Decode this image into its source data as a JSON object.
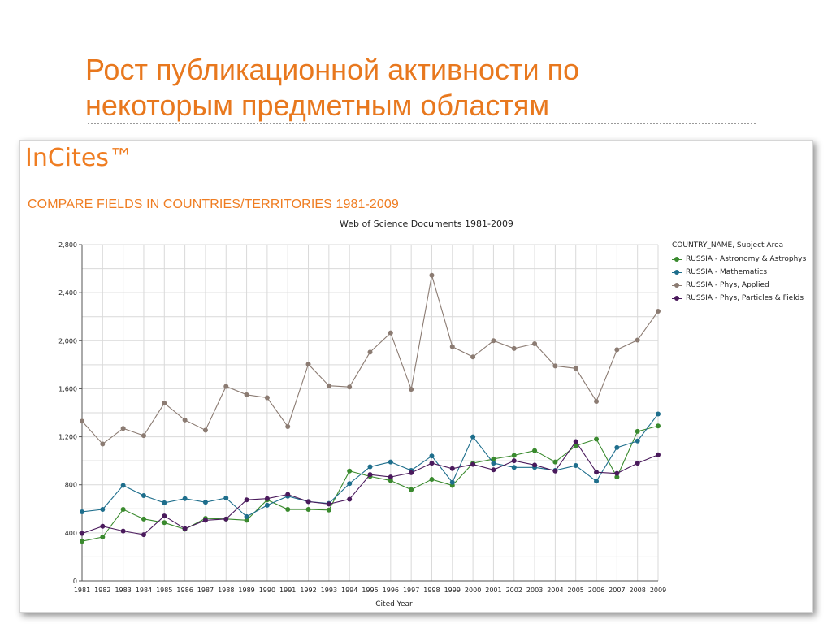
{
  "slide": {
    "title_line1": "Рост публикационной активности по",
    "title_line2": "некоторым предметным областям"
  },
  "panel": {
    "brand": "InCites™",
    "subtitle": "COMPARE FIELDS IN COUNTRIES/TERRITORIES 1981-2009"
  },
  "chart_data": {
    "type": "line",
    "title": "Web of Science Documents 1981-2009",
    "xlabel": "Cited Year",
    "ylabel": "",
    "ylim": [
      0,
      2800
    ],
    "yticks": [
      0,
      400,
      800,
      1200,
      1600,
      2000,
      2400,
      2800
    ],
    "ytick_labels": [
      "0",
      "400",
      "800",
      "1,200",
      "1,600",
      "2,000",
      "2,400",
      "2,800"
    ],
    "grid": true,
    "legend_title": "COUNTRY_NAME, Subject Area",
    "legend_position": "right",
    "categories": [
      "1981",
      "1982",
      "1983",
      "1984",
      "1985",
      "1986",
      "1987",
      "1988",
      "1989",
      "1990",
      "1991",
      "1992",
      "1993",
      "1994",
      "1995",
      "1996",
      "1997",
      "1998",
      "1999",
      "2000",
      "2001",
      "2002",
      "2003",
      "2004",
      "2005",
      "2006",
      "2007",
      "2008",
      "2009"
    ],
    "series": [
      {
        "name": "RUSSIA - Astronomy & Astrophys",
        "color": "#3a8a2e",
        "values": [
          330,
          365,
          595,
          515,
          485,
          430,
          520,
          515,
          505,
          675,
          595,
          595,
          590,
          915,
          870,
          835,
          760,
          845,
          795,
          980,
          1015,
          1045,
          1085,
          990,
          1125,
          1180,
          865,
          1245,
          1290
        ]
      },
      {
        "name": "RUSSIA - Mathematics",
        "color": "#1e6e8c",
        "values": [
          575,
          595,
          795,
          710,
          650,
          685,
          655,
          690,
          535,
          630,
          705,
          660,
          645,
          810,
          950,
          990,
          920,
          1040,
          820,
          1200,
          980,
          945,
          945,
          920,
          960,
          830,
          1110,
          1165,
          1390
        ]
      },
      {
        "name": "RUSSIA - Phys, Applied",
        "color": "#8b7b72",
        "values": [
          1330,
          1140,
          1270,
          1210,
          1480,
          1340,
          1255,
          1620,
          1550,
          1525,
          1285,
          1805,
          1625,
          1615,
          1905,
          2065,
          1595,
          2545,
          1950,
          1865,
          2000,
          1935,
          1975,
          1790,
          1770,
          1495,
          1925,
          2005,
          2245
        ]
      },
      {
        "name": "RUSSIA - Phys, Particles & Fields",
        "color": "#4a1a5c",
        "values": [
          395,
          455,
          415,
          385,
          540,
          435,
          505,
          515,
          675,
          685,
          720,
          660,
          640,
          680,
          885,
          865,
          900,
          980,
          935,
          970,
          925,
          1000,
          965,
          915,
          1160,
          905,
          895,
          980,
          1050
        ]
      }
    ]
  }
}
